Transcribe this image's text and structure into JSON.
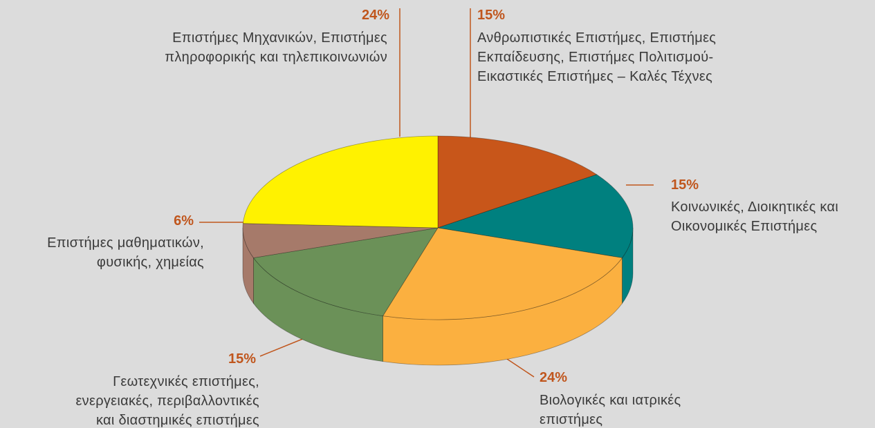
{
  "chart_data": {
    "type": "pie",
    "categories": [
      "Ανθρωπιστικές Επιστήμες, Επιστήμες\nΕκπαίδευσης, Επιστήμες Πολιτισμού-\nΕικαστικές Επιστήμες – Καλές Τέχνες",
      "Κοινωνικές, Διοικητικές και\nΟικονομικές Επιστήμες",
      "Βιολογικές και ιατρικές\nεπιστήμες",
      "Γεωτεχνικές επιστήμες,\nενεργειακές, περιβαλλοντικές\nκαι διαστημικές επιστήμες",
      "Επιστήμες μαθηματικών,\nφυσικής, χημείας",
      "Επιστήμες Μηχανικών, Επιστήμες\nπληροφορικής και τηλεπικοινωνιών"
    ],
    "values": [
      15,
      15,
      24,
      15,
      6,
      24
    ],
    "value_labels": [
      "15%",
      "15%",
      "24%",
      "15%",
      "6%",
      "24%"
    ],
    "colors": [
      "#c8561a",
      "#00807f",
      "#fbb040",
      "#6b9158",
      "#a67a6a",
      "#fff200"
    ]
  }
}
